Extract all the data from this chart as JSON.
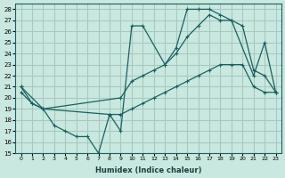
{
  "title": "",
  "xlabel": "Humidex (Indice chaleur)",
  "bg_color": "#c8e8e0",
  "grid_color": "#a8c8c0",
  "line_color": "#1a6060",
  "xlim": [
    -0.5,
    23.5
  ],
  "ylim": [
    15,
    28.5
  ],
  "yticks": [
    15,
    16,
    17,
    18,
    19,
    20,
    21,
    22,
    23,
    24,
    25,
    26,
    27,
    28
  ],
  "xticks": [
    0,
    1,
    2,
    3,
    4,
    5,
    6,
    7,
    8,
    9,
    10,
    11,
    12,
    13,
    14,
    15,
    16,
    17,
    18,
    19,
    20,
    21,
    22,
    23
  ],
  "curve1_x": [
    0,
    1,
    2,
    3,
    4,
    5,
    6,
    7,
    8,
    9,
    10,
    11,
    13,
    14,
    15,
    16,
    17,
    18,
    19,
    21,
    22,
    23
  ],
  "curve1_y": [
    21.0,
    19.5,
    19.0,
    17.5,
    17.0,
    16.5,
    16.5,
    15.0,
    18.5,
    17.0,
    26.5,
    26.5,
    23.0,
    24.5,
    28.0,
    28.0,
    28.0,
    27.5,
    27.0,
    22.0,
    25.0,
    20.5
  ],
  "curve2_x": [
    0,
    2,
    9,
    10,
    11,
    12,
    13,
    14,
    15,
    16,
    17,
    18,
    19,
    20,
    21,
    22,
    23
  ],
  "curve2_y": [
    21.0,
    19.0,
    20.0,
    21.5,
    22.0,
    22.5,
    23.0,
    24.0,
    25.5,
    26.5,
    27.5,
    27.0,
    27.0,
    26.5,
    22.5,
    22.0,
    20.5
  ],
  "curve3_x": [
    0,
    1,
    2,
    8,
    9,
    10,
    11,
    12,
    13,
    14,
    15,
    16,
    17,
    18,
    19,
    20,
    21,
    22,
    23
  ],
  "curve3_y": [
    20.5,
    19.5,
    19.0,
    18.5,
    18.5,
    19.0,
    19.5,
    20.0,
    20.5,
    21.0,
    21.5,
    22.0,
    22.5,
    23.0,
    23.0,
    23.0,
    21.0,
    20.5,
    20.5
  ]
}
